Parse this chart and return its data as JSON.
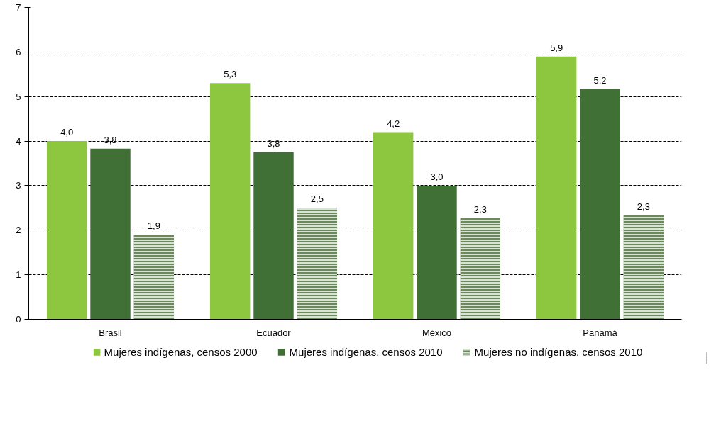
{
  "chart_data": {
    "type": "bar",
    "categories": [
      "Brasil",
      "Ecuador",
      "México",
      "Panamá"
    ],
    "series": [
      {
        "name": "Mujeres indígenas, censos 2000",
        "color": "#8dc63f",
        "values": [
          4.0,
          5.3,
          4.2,
          5.9
        ],
        "value_labels": [
          "4,0",
          "5,3",
          "4,2",
          "5,9"
        ]
      },
      {
        "name": "Mujeres indígenas, censos 2010",
        "color": "#417036",
        "values": [
          3.83,
          3.75,
          3.0,
          5.17
        ],
        "value_labels": [
          "3,8",
          "3,8",
          "3,0",
          "5,2"
        ]
      },
      {
        "name": "Mujeres no indígenas, censos 2010",
        "color": "#6b8a5c",
        "values": [
          1.9,
          2.5,
          2.27,
          2.33
        ],
        "value_labels": [
          "1,9",
          "2,5",
          "2,3",
          "2,3"
        ]
      }
    ],
    "ylim": [
      0,
      7
    ],
    "yticks": [
      0,
      1,
      2,
      3,
      4,
      5,
      6,
      7
    ],
    "grid": "y",
    "legend": "bottom"
  }
}
